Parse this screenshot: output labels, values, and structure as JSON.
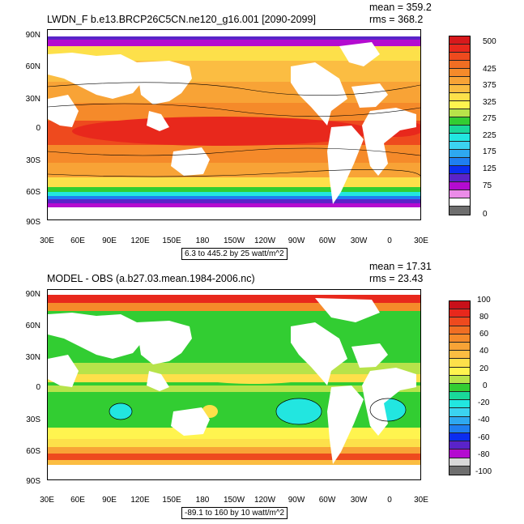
{
  "panels": [
    {
      "title": "LWDN_F b.e13.BRCP26C5CN.ne120_g16.001 [2090-2099]",
      "mean": "mean = 359.2",
      "rms": "rms = 368.2",
      "range": "6.3 to 445.2 by 25 watt/m^2",
      "lat_labels": [
        "90N",
        "60N",
        "30N",
        "0",
        "30S",
        "60S",
        "90S"
      ],
      "lon_labels": [
        "30E",
        "60E",
        "90E",
        "120E",
        "150E",
        "180",
        "150W",
        "120W",
        "90W",
        "60W",
        "30W",
        "0",
        "30E"
      ],
      "colorbar": {
        "labels": [
          "500",
          "425",
          "375",
          "325",
          "275",
          "225",
          "175",
          "125",
          "75",
          "0"
        ],
        "colors": [
          "#d7191c",
          "#e8281c",
          "#ee4a1e",
          "#f06e23",
          "#f58a2a",
          "#f8a336",
          "#fbbd42",
          "#fde04a",
          "#fff44f",
          "#b7e34a",
          "#32cd32",
          "#19d89a",
          "#22e6e0",
          "#3bd3f0",
          "#2ea8f0",
          "#1f7ef0",
          "#0b2df0",
          "#5a23c9",
          "#b40bd0",
          "#eb8be8",
          "#ffffff",
          "#6e6e6e"
        ]
      }
    },
    {
      "title": "MODEL - OBS (a.b27.03.mean.1984-2006.nc)",
      "mean": "mean = 17.31",
      "rms": "rms = 23.43",
      "range": "-89.1 to 160 by 10 watt/m^2",
      "lat_labels": [
        "90N",
        "60N",
        "30N",
        "0",
        "30S",
        "60S",
        "90S"
      ],
      "lon_labels": [
        "30E",
        "60E",
        "90E",
        "120E",
        "150E",
        "180",
        "150W",
        "120W",
        "90W",
        "60W",
        "30W",
        "0",
        "30E"
      ],
      "colorbar": {
        "labels": [
          "100",
          "80",
          "60",
          "40",
          "20",
          "0",
          "-20",
          "-40",
          "-60",
          "-80",
          "-100"
        ],
        "colors": [
          "#c8101a",
          "#e8281c",
          "#ee4a1e",
          "#f06e23",
          "#f58a2a",
          "#f8a336",
          "#fbbd42",
          "#fde04a",
          "#fff44f",
          "#b7e34a",
          "#32cd32",
          "#19d89a",
          "#22e6e0",
          "#3bd3f0",
          "#2ea8f0",
          "#1f7ef0",
          "#0b2df0",
          "#5a23c9",
          "#b40bd0",
          "#d8d8d8",
          "#6e6e6e"
        ]
      }
    }
  ]
}
